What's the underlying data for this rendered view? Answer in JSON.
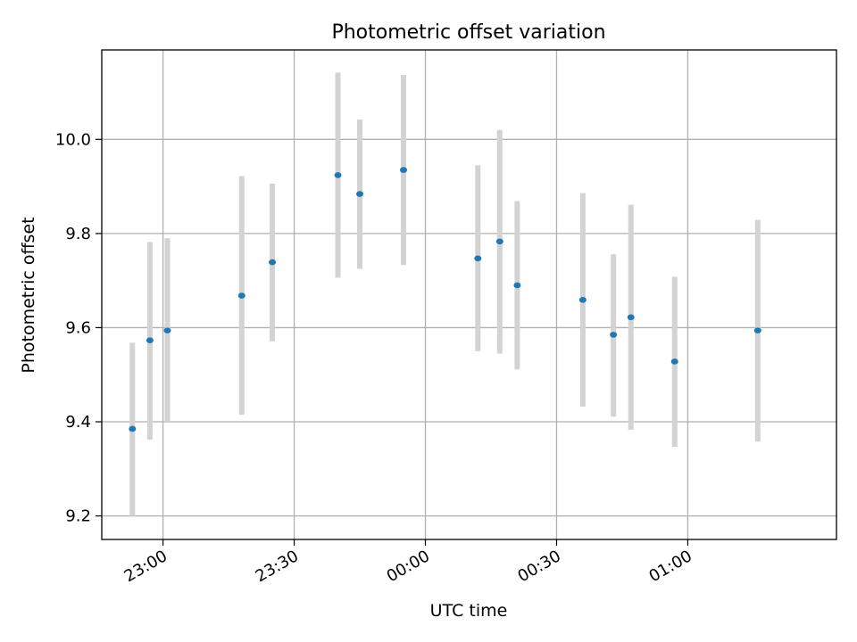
{
  "chart_data": {
    "type": "scatter",
    "title": "Photometric offset variation",
    "xlabel": "UTC time",
    "ylabel": "Photometric offset",
    "grid": true,
    "x_unit": "UTC time",
    "xlim": [
      "22:46",
      "01:34"
    ],
    "ylim": [
      9.15,
      10.19
    ],
    "x_ticks": [
      "23:00",
      "23:30",
      "00:00",
      "00:30",
      "01:00"
    ],
    "y_ticks": [
      "9.2",
      "9.4",
      "9.6",
      "9.8",
      "10.0"
    ],
    "colors": {
      "marker": "#1f77b4",
      "errorbar": "#d3d3d3"
    },
    "series": [
      {
        "points": [
          {
            "x": "22:53",
            "y": 9.385,
            "lo": 9.2,
            "hi": 9.568
          },
          {
            "x": "22:57",
            "y": 9.573,
            "lo": 9.362,
            "hi": 9.782
          },
          {
            "x": "23:01",
            "y": 9.594,
            "lo": 9.4,
            "hi": 9.79
          },
          {
            "x": "23:18",
            "y": 9.668,
            "lo": 9.415,
            "hi": 9.922
          },
          {
            "x": "23:25",
            "y": 9.739,
            "lo": 9.571,
            "hi": 9.906
          },
          {
            "x": "23:40",
            "y": 9.924,
            "lo": 9.706,
            "hi": 10.142
          },
          {
            "x": "23:45",
            "y": 9.884,
            "lo": 9.725,
            "hi": 10.042
          },
          {
            "x": "23:55",
            "y": 9.935,
            "lo": 9.733,
            "hi": 10.137
          },
          {
            "x": "00:12",
            "y": 9.747,
            "lo": 9.55,
            "hi": 9.945
          },
          {
            "x": "00:17",
            "y": 9.783,
            "lo": 9.545,
            "hi": 10.02
          },
          {
            "x": "00:21",
            "y": 9.69,
            "lo": 9.511,
            "hi": 9.869
          },
          {
            "x": "00:36",
            "y": 9.659,
            "lo": 9.432,
            "hi": 9.886
          },
          {
            "x": "00:43",
            "y": 9.585,
            "lo": 9.411,
            "hi": 9.756
          },
          {
            "x": "00:47",
            "y": 9.622,
            "lo": 9.383,
            "hi": 9.861
          },
          {
            "x": "00:57",
            "y": 9.528,
            "lo": 9.347,
            "hi": 9.708
          },
          {
            "x": "01:16",
            "y": 9.594,
            "lo": 9.358,
            "hi": 9.829
          }
        ]
      }
    ]
  }
}
